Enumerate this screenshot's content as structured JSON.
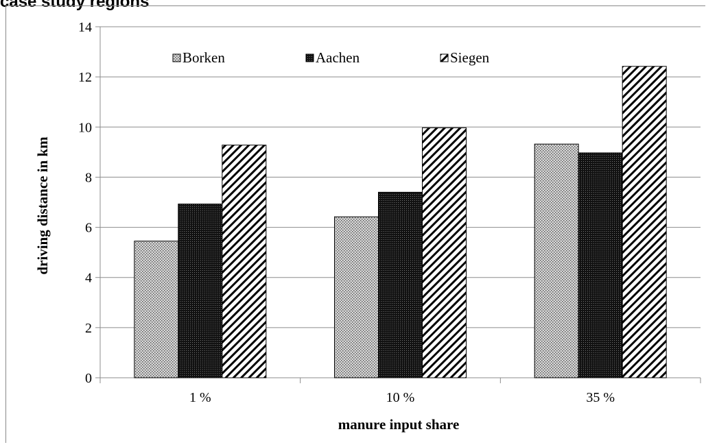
{
  "header": {
    "title": "case study regions"
  },
  "chart_data": {
    "type": "bar",
    "categories": [
      "1 %",
      "10 %",
      "35 %"
    ],
    "series": [
      {
        "name": "Borken",
        "values": [
          5.45,
          6.42,
          9.32
        ],
        "pattern": "dots",
        "color": "#808080"
      },
      {
        "name": "Aachen",
        "values": [
          6.93,
          7.4,
          8.97
        ],
        "pattern": "dense-dots",
        "color": "#000000"
      },
      {
        "name": "Siegen",
        "values": [
          9.28,
          9.97,
          12.42
        ],
        "pattern": "diagonal-hatch",
        "color": "#000000"
      }
    ],
    "xlabel": "manure input share",
    "ylabel": "driving distance in km",
    "ylim": [
      0,
      14
    ],
    "yticks": [
      "0",
      "2",
      "4",
      "6",
      "8",
      "10",
      "12",
      "14"
    ],
    "grid": true,
    "legend_position": "top"
  }
}
